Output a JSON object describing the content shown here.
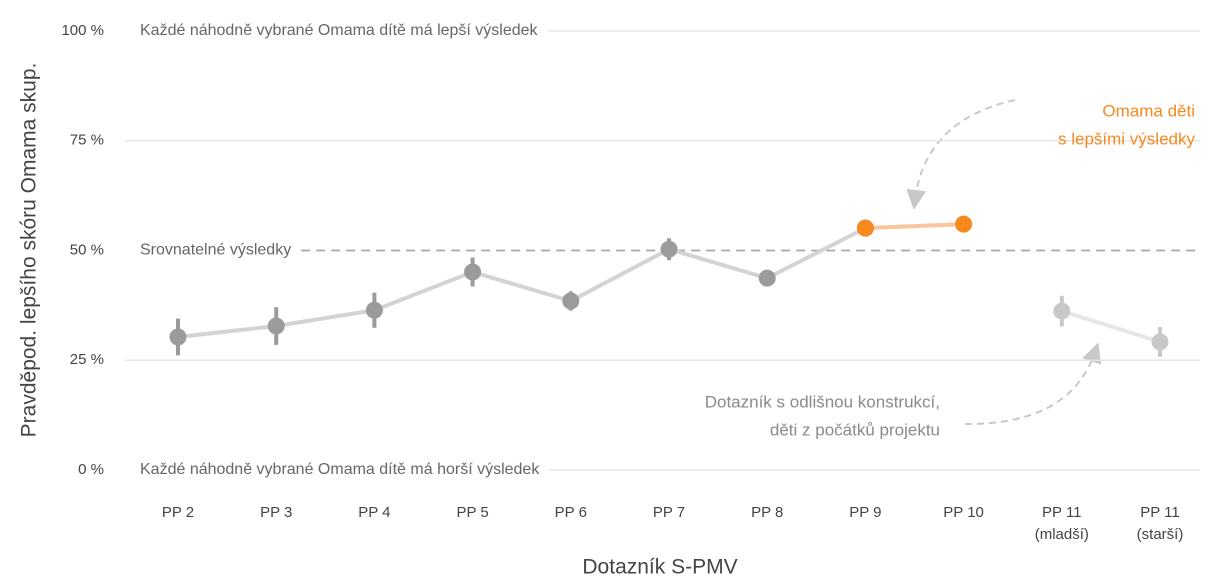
{
  "chart_data": {
    "type": "line",
    "y_label": "Pravděpod. lepšího skóru Omama skup.",
    "x_label": "Dotazník S-PMV",
    "categories": [
      "PP 2",
      "PP 3",
      "PP 4",
      "PP 5",
      "PP 6",
      "PP 7",
      "PP 8",
      "PP 9",
      "PP 10",
      [
        "PP 11",
        "(mladší)"
      ],
      [
        "PP 11",
        "(starší)"
      ]
    ],
    "series": [
      {
        "line_color": "#d3d3d3",
        "marker_color": "#9b9b9b",
        "values": [
          30.3,
          32.8,
          36.4,
          45.1,
          38.5,
          50.3,
          43.7,
          55.1,
          null,
          null,
          null
        ],
        "errors": [
          4.2,
          4.3,
          4.0,
          3.3,
          2.2,
          2.5,
          1.7,
          null,
          null,
          null,
          null
        ]
      },
      {
        "line_color": "#f9c59a",
        "marker_color": "#f7891f",
        "values": [
          null,
          null,
          null,
          null,
          null,
          null,
          null,
          55.1,
          56.0,
          null,
          null
        ],
        "errors": [
          null,
          null,
          null,
          null,
          null,
          null,
          null,
          null,
          null,
          null,
          null
        ]
      },
      {
        "line_color": "#e6e6e6",
        "marker_color": "#c8c8c8",
        "values": [
          null,
          null,
          null,
          null,
          null,
          null,
          null,
          null,
          null,
          36.2,
          29.2
        ],
        "errors": [
          null,
          null,
          null,
          null,
          null,
          null,
          null,
          null,
          null,
          3.5,
          3.4
        ]
      }
    ],
    "ylim": [
      0,
      100
    ],
    "yticks": [
      {
        "value": 0,
        "label": "0 %"
      },
      {
        "value": 25,
        "label": "25 %"
      },
      {
        "value": 50,
        "label": "50 %"
      },
      {
        "value": 75,
        "label": "75 %"
      },
      {
        "value": 100,
        "label": "100 %"
      }
    ],
    "grid": true,
    "reference_lines": [
      {
        "value": 100,
        "label": "Každé náhodně vybrané Omama dítě má lepší výsledek",
        "style": "solid"
      },
      {
        "value": 50,
        "label": "Srovnatelné výsledky",
        "style": "dashed"
      },
      {
        "value": 0,
        "label": "Každé náhodně vybrané Omama dítě má horší výsledek",
        "style": "solid"
      }
    ],
    "annotations": [
      {
        "lines": [
          "Omama děti",
          "s lepšími výsledky"
        ],
        "color": "#f7891f"
      },
      {
        "lines": [
          "Dotazník s odlišnou konstrukcí,",
          "děti z počátků projektu"
        ],
        "color": "#8a8a8a"
      }
    ]
  }
}
